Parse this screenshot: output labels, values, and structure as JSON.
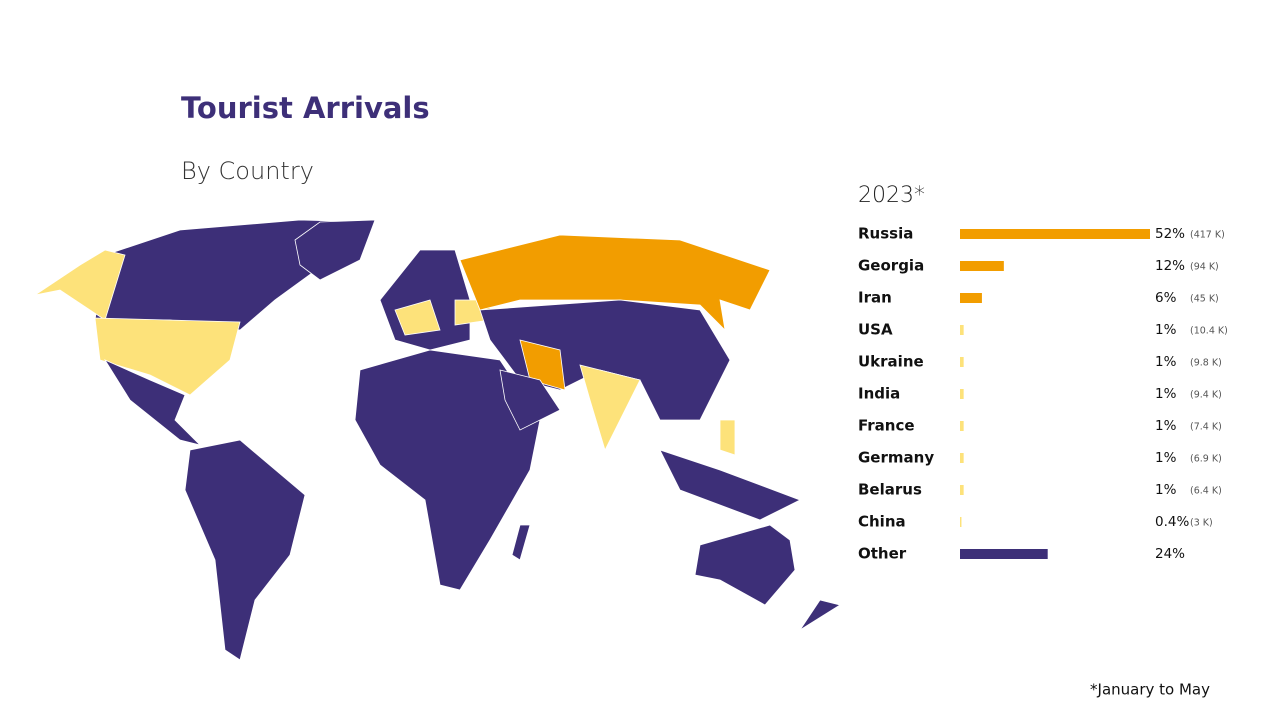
{
  "title": "Tourist Arrivals",
  "subtitle": "By Country",
  "footnote": "*January to May",
  "chart_data": {
    "type": "bar",
    "orientation": "horizontal",
    "title": "2023*",
    "categories": [
      "Russia",
      "Georgia",
      "Iran",
      "USA",
      "Ukraine",
      "India",
      "France",
      "Germany",
      "Belarus",
      "China",
      "Other"
    ],
    "values": [
      52,
      12,
      6,
      1,
      1,
      1,
      1,
      1,
      1,
      0.4,
      24
    ],
    "value_labels": [
      "52%",
      "12%",
      "6%",
      "1%",
      "1%",
      "1%",
      "1%",
      "1%",
      "1%",
      "0.4%",
      "24%"
    ],
    "count_labels": [
      "(417 K)",
      "(94 K)",
      "(45 K)",
      "(10.4 K)",
      "(9.8 K)",
      "(9.4 K)",
      "(7.4 K)",
      "(6.9 K)",
      "(6.4 K)",
      "(3 K)",
      null
    ],
    "colors": [
      "#f29d00",
      "#f29d00",
      "#f29d00",
      "#fde27a",
      "#fde27a",
      "#fde27a",
      "#fde27a",
      "#fde27a",
      "#fde27a",
      "#fde27a",
      "#3d2f78"
    ]
  }
}
